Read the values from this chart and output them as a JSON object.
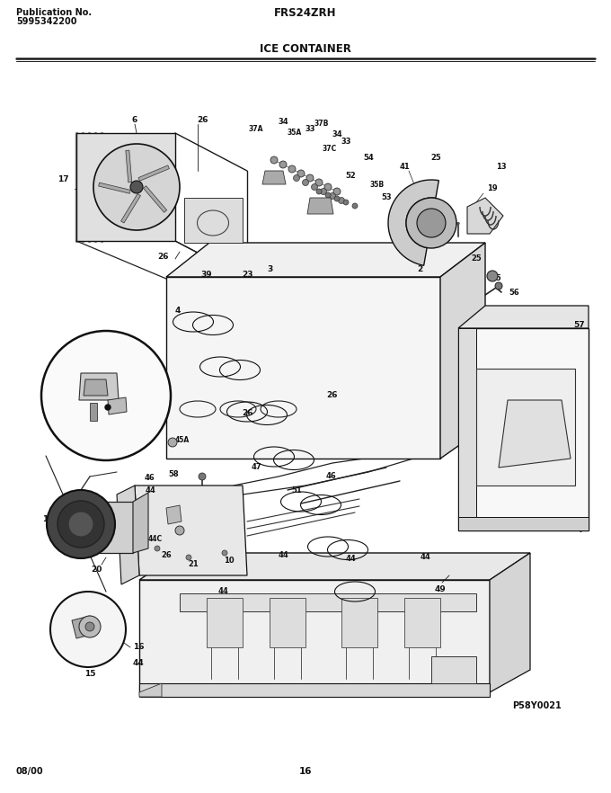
{
  "title_model": "FRS24ZRH",
  "title_section": "ICE CONTAINER",
  "pub_label": "Publication No.",
  "pub_number": "5995342200",
  "date_label": "08/00",
  "page_number": "16",
  "diagram_id": "P58Y0021",
  "bg_color": "#ffffff",
  "fig_width": 6.8,
  "fig_height": 8.82,
  "dpi": 100
}
